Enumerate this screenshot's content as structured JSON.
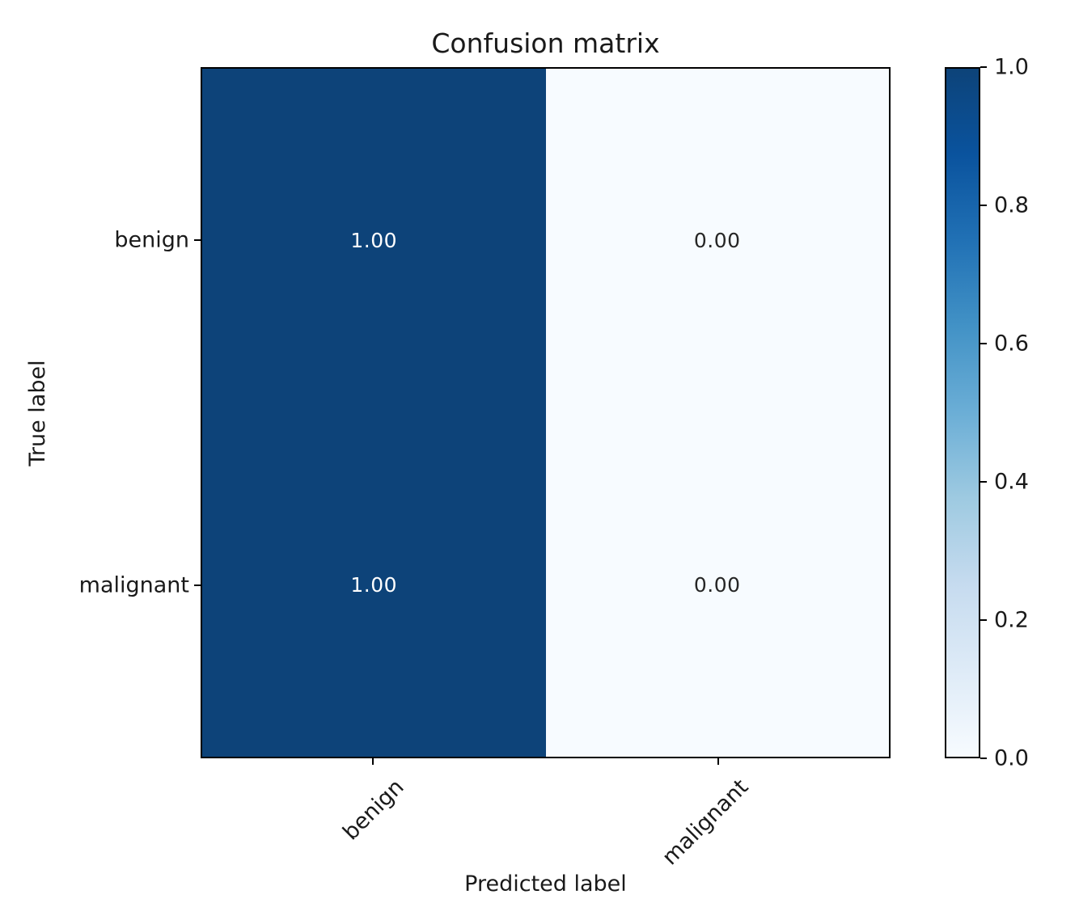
{
  "chart_data": {
    "type": "heatmap",
    "title": "Confusion matrix",
    "xlabel": "Predicted label",
    "ylabel": "True label",
    "x_categories": [
      "benign",
      "malignant"
    ],
    "y_categories": [
      "benign",
      "malignant"
    ],
    "matrix": [
      [
        1.0,
        0.0
      ],
      [
        1.0,
        0.0
      ]
    ],
    "cell_labels": [
      [
        "1.00",
        "0.00"
      ],
      [
        "1.00",
        "0.00"
      ]
    ],
    "colormap": "Blues",
    "value_range": [
      0.0,
      1.0
    ],
    "grid": false,
    "legend_position": "right-colorbar",
    "colorbar_ticks": [
      {
        "label": "0.0",
        "value": 0.0
      },
      {
        "label": "0.2",
        "value": 0.2
      },
      {
        "label": "0.4",
        "value": 0.4
      },
      {
        "label": "0.6",
        "value": 0.6
      },
      {
        "label": "0.8",
        "value": 0.8
      },
      {
        "label": "1.0",
        "value": 1.0
      }
    ],
    "colors": {
      "high": "#0d4379",
      "low": "#f7fbff",
      "cell_text_on_dark": "#ffffff",
      "cell_text_on_light": "#262626",
      "axis": "#000000",
      "gradient_stops": [
        "#f7fbff",
        "#deebf7",
        "#c6dbef",
        "#9ecae1",
        "#6baed6",
        "#4292c6",
        "#2171b5",
        "#0a539e",
        "#0d4379"
      ]
    }
  }
}
